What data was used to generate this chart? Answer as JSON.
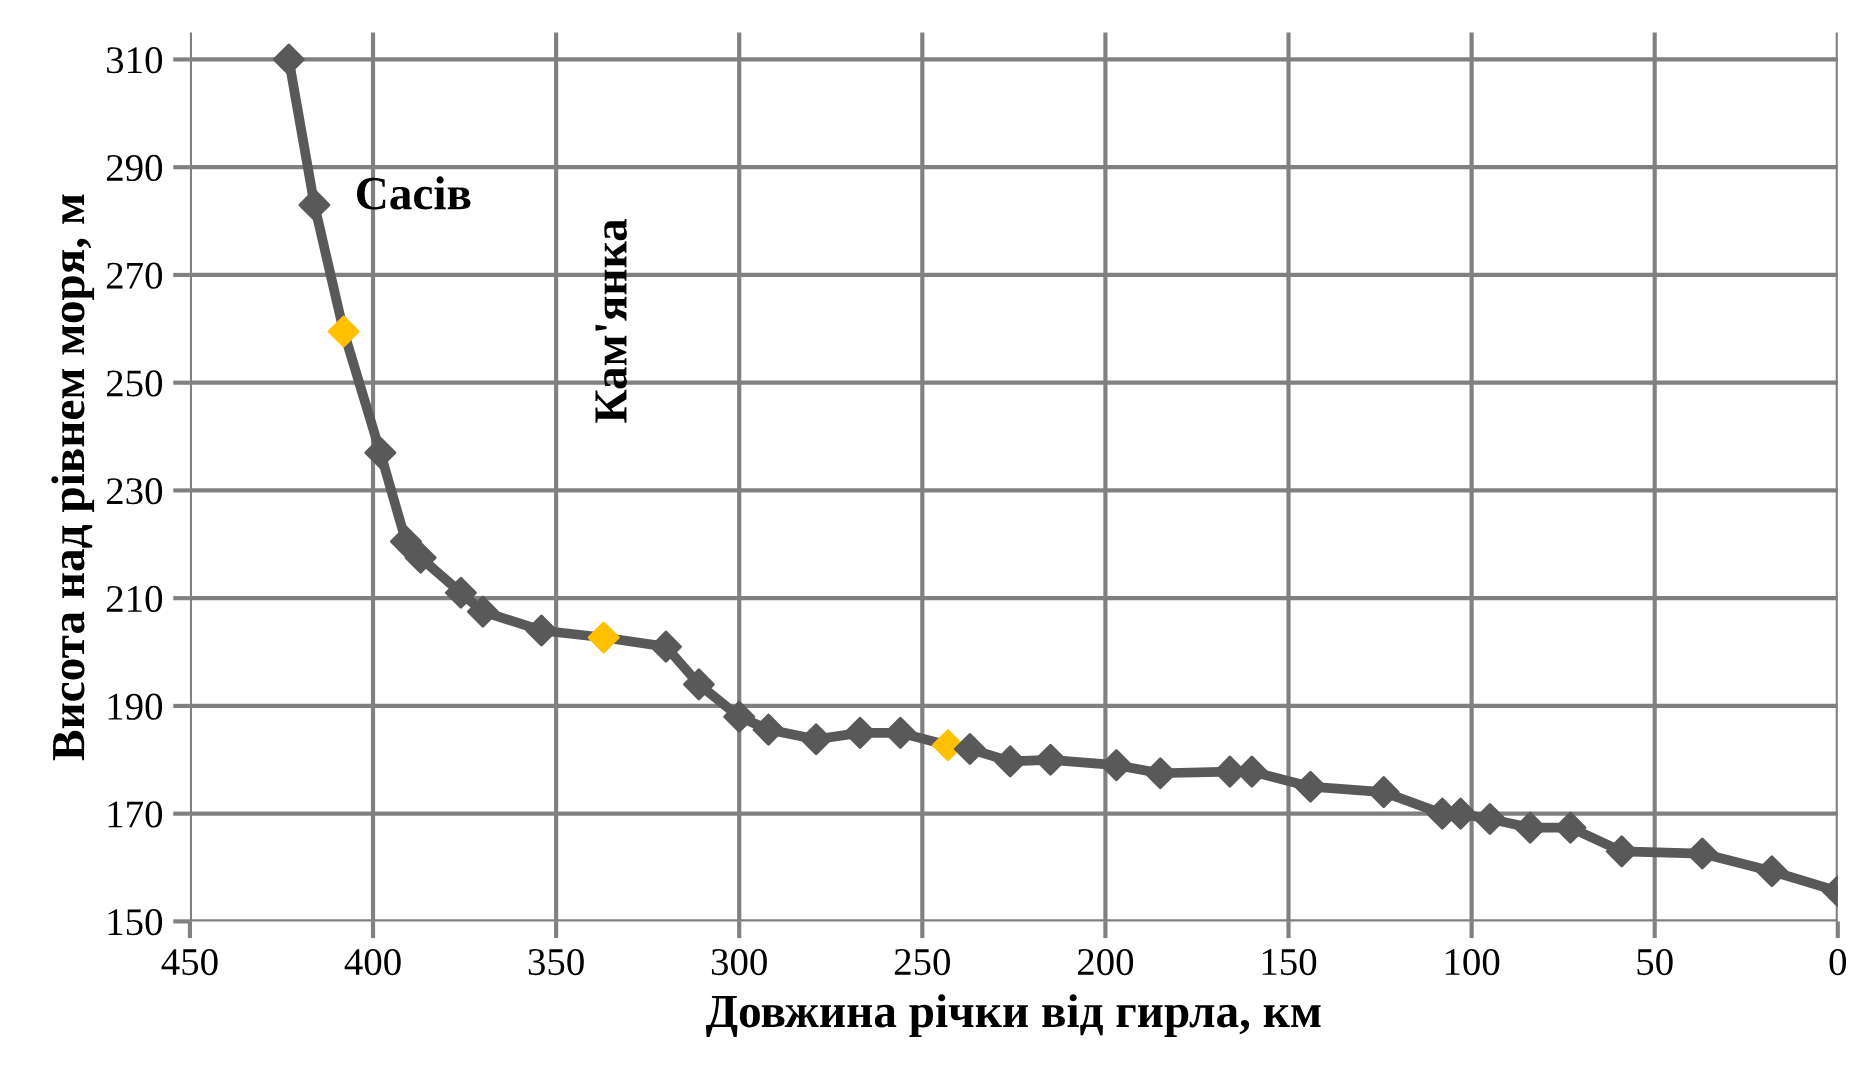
{
  "chart_data": {
    "type": "line",
    "xlabel": "Довжина річки від гирла, км",
    "ylabel": "Висота над рівнем моря, м",
    "xlim": [
      450,
      0
    ],
    "xticks": [
      450,
      400,
      350,
      300,
      250,
      200,
      150,
      100,
      50,
      0
    ],
    "ylim": [
      150,
      315
    ],
    "yticks": [
      150,
      170,
      190,
      210,
      230,
      250,
      270,
      290,
      310
    ],
    "grid": true,
    "marker": "diamond",
    "line_style": "solid",
    "series": [
      {
        "color": "#595959",
        "colors": [
          "#595959",
          "#595959",
          "#ffc000",
          "#595959",
          "#595959",
          "#595959",
          "#595959",
          "#595959",
          "#595959",
          "#ffc000",
          "#595959",
          "#595959",
          "#595959",
          "#595959",
          "#595959",
          "#595959",
          "#595959",
          "#ffc000",
          "#595959",
          "#595959",
          "#595959",
          "#595959",
          "#595959",
          "#595959",
          "#595959",
          "#595959",
          "#595959",
          "#595959",
          "#595959",
          "#595959",
          "#595959",
          "#595959",
          "#595959",
          "#595959",
          "#595959",
          "#595959"
        ],
        "x": [
          423,
          416,
          408,
          398,
          391,
          387,
          376,
          370,
          354,
          337,
          320,
          311,
          300,
          292,
          279,
          267,
          256,
          243,
          237,
          226,
          215,
          197,
          185,
          166,
          160,
          144,
          124,
          108,
          103,
          95,
          84,
          73,
          59,
          37,
          18,
          0
        ],
        "values": [
          310,
          283,
          259.5,
          237,
          220.5,
          217.5,
          211,
          207.5,
          204,
          202.7,
          201,
          194,
          188,
          185.6,
          183.8,
          185,
          185,
          182.7,
          182,
          179.7,
          180,
          179,
          177.5,
          177.8,
          177.8,
          175,
          174,
          170,
          170,
          169,
          167.4,
          167.4,
          163,
          162.6,
          159.3,
          155.6
        ]
      }
    ],
    "annotations": [
      "Сасів",
      "Кам'янка"
    ]
  }
}
